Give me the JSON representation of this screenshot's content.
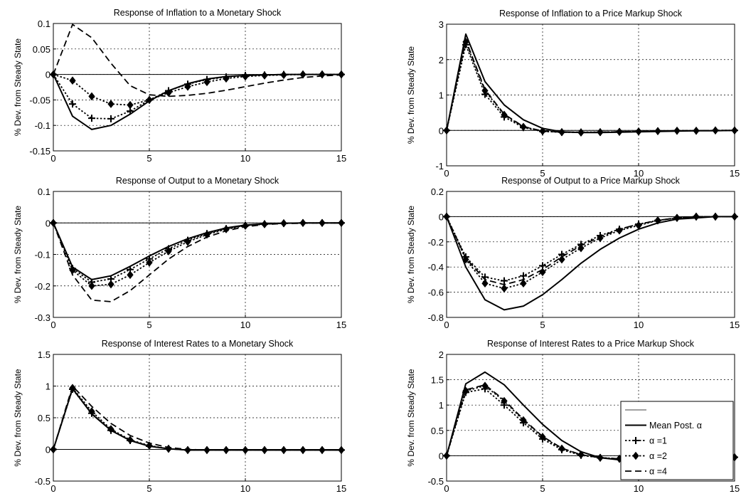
{
  "chart_data": [
    {
      "type": "line",
      "title": "Response of Inflation to a Monetary Shock",
      "xlabel": "",
      "ylabel": "% Dev. from Steady State",
      "xlim": [
        0,
        15
      ],
      "ylim": [
        -0.15,
        0.1
      ],
      "xticks": [
        0,
        5,
        10,
        15
      ],
      "yticks": [
        -0.15,
        -0.1,
        -0.05,
        0,
        0.05,
        0.1
      ],
      "ytick_labels": [
        "-0.15",
        "-0.1",
        "-0.05",
        "0",
        "0.05",
        "0.1"
      ],
      "grid": true,
      "x": [
        0,
        1,
        2,
        3,
        4,
        5,
        6,
        7,
        8,
        9,
        10,
        11,
        12,
        13,
        14,
        15
      ],
      "series": [
        {
          "style": "mean",
          "values": [
            0,
            -0.082,
            -0.108,
            -0.1,
            -0.078,
            -0.052,
            -0.032,
            -0.018,
            -0.009,
            -0.004,
            -0.002,
            -0.001,
            0,
            0,
            0,
            0
          ]
        },
        {
          "style": "a1",
          "values": [
            0,
            -0.058,
            -0.086,
            -0.087,
            -0.072,
            -0.05,
            -0.032,
            -0.019,
            -0.01,
            -0.005,
            -0.002,
            -0.001,
            0,
            0,
            0,
            0
          ]
        },
        {
          "style": "a2",
          "values": [
            0,
            -0.012,
            -0.043,
            -0.058,
            -0.06,
            -0.05,
            -0.036,
            -0.024,
            -0.015,
            -0.008,
            -0.004,
            -0.002,
            -0.001,
            0,
            0,
            0
          ]
        },
        {
          "style": "a4",
          "values": [
            0,
            0.098,
            0.072,
            0.022,
            -0.022,
            -0.04,
            -0.043,
            -0.041,
            -0.037,
            -0.031,
            -0.024,
            -0.017,
            -0.011,
            -0.006,
            -0.003,
            -0.001
          ]
        }
      ]
    },
    {
      "type": "line",
      "title": "Response of Inflation to a Price Markup Shock",
      "xlabel": "",
      "ylabel": "% Dev. from Steady State",
      "xlim": [
        0,
        15
      ],
      "ylim": [
        -1,
        3
      ],
      "xticks": [
        0,
        5,
        10,
        15
      ],
      "yticks": [
        -1,
        0,
        1,
        2,
        3
      ],
      "ytick_labels": [
        "-1",
        "0",
        "1",
        "2",
        "3"
      ],
      "grid": true,
      "x": [
        0,
        1,
        2,
        3,
        4,
        5,
        6,
        7,
        8,
        9,
        10,
        11,
        12,
        13,
        14,
        15
      ],
      "series": [
        {
          "style": "mean",
          "values": [
            0,
            2.72,
            1.38,
            0.72,
            0.3,
            0.06,
            -0.04,
            -0.06,
            -0.06,
            -0.05,
            -0.04,
            -0.03,
            -0.02,
            -0.01,
            -0.01,
            0
          ]
        },
        {
          "style": "a1",
          "values": [
            0,
            2.42,
            1.02,
            0.38,
            0.08,
            -0.03,
            -0.05,
            -0.05,
            -0.05,
            -0.04,
            -0.03,
            -0.02,
            -0.01,
            -0.01,
            0,
            0
          ]
        },
        {
          "style": "a2",
          "values": [
            0,
            2.5,
            1.12,
            0.44,
            0.1,
            -0.02,
            -0.05,
            -0.06,
            -0.05,
            -0.04,
            -0.03,
            -0.02,
            -0.01,
            -0.01,
            0,
            0
          ]
        },
        {
          "style": "a4",
          "values": [
            0,
            2.55,
            1.15,
            0.46,
            0.11,
            -0.02,
            -0.05,
            -0.06,
            -0.05,
            -0.04,
            -0.03,
            -0.02,
            -0.01,
            -0.01,
            0,
            0
          ]
        }
      ]
    },
    {
      "type": "line",
      "title": "Response of Output to a Monetary Shock",
      "xlabel": "",
      "ylabel": "% Dev. from Steady State",
      "xlim": [
        0,
        15
      ],
      "ylim": [
        -0.3,
        0.1
      ],
      "xticks": [
        0,
        5,
        10,
        15
      ],
      "yticks": [
        -0.3,
        -0.2,
        -0.1,
        0,
        0.1
      ],
      "ytick_labels": [
        "-0.3",
        "-0.2",
        "-0.1",
        "0",
        "0.1"
      ],
      "grid": true,
      "x": [
        0,
        1,
        2,
        3,
        4,
        5,
        6,
        7,
        8,
        9,
        10,
        11,
        12,
        13,
        14,
        15
      ],
      "series": [
        {
          "style": "mean",
          "values": [
            0,
            -0.14,
            -0.18,
            -0.168,
            -0.138,
            -0.105,
            -0.075,
            -0.05,
            -0.031,
            -0.016,
            -0.007,
            -0.003,
            -0.001,
            0,
            0,
            0
          ]
        },
        {
          "style": "a1",
          "values": [
            0,
            -0.145,
            -0.188,
            -0.178,
            -0.148,
            -0.114,
            -0.082,
            -0.055,
            -0.034,
            -0.018,
            -0.008,
            -0.003,
            -0.001,
            0,
            0,
            0
          ]
        },
        {
          "style": "a2",
          "values": [
            0,
            -0.15,
            -0.2,
            -0.195,
            -0.165,
            -0.126,
            -0.09,
            -0.06,
            -0.037,
            -0.02,
            -0.009,
            -0.004,
            -0.001,
            0,
            0,
            0
          ]
        },
        {
          "style": "a4",
          "values": [
            0,
            -0.165,
            -0.245,
            -0.25,
            -0.215,
            -0.165,
            -0.115,
            -0.075,
            -0.045,
            -0.025,
            -0.012,
            -0.005,
            -0.002,
            -0.001,
            0,
            0
          ]
        }
      ]
    },
    {
      "type": "line",
      "title": "Response of Output to a Price Markup Shock",
      "xlabel": "",
      "ylabel": "% Dev. from Steady State",
      "xlim": [
        0,
        15
      ],
      "ylim": [
        -0.8,
        0.2
      ],
      "xticks": [
        0,
        5,
        10,
        15
      ],
      "yticks": [
        -0.8,
        -0.6,
        -0.4,
        -0.2,
        0,
        0.2
      ],
      "ytick_labels": [
        "-0.8",
        "-0.6",
        "-0.4",
        "-0.2",
        "0",
        "0.2"
      ],
      "grid": true,
      "x": [
        0,
        1,
        2,
        3,
        4,
        5,
        6,
        7,
        8,
        9,
        10,
        11,
        12,
        13,
        14,
        15
      ],
      "series": [
        {
          "style": "mean",
          "values": [
            0,
            -0.4,
            -0.66,
            -0.74,
            -0.71,
            -0.62,
            -0.5,
            -0.37,
            -0.26,
            -0.17,
            -0.1,
            -0.05,
            -0.02,
            -0.01,
            0,
            0
          ]
        },
        {
          "style": "a1",
          "values": [
            0,
            -0.32,
            -0.48,
            -0.51,
            -0.47,
            -0.39,
            -0.3,
            -0.22,
            -0.15,
            -0.1,
            -0.06,
            -0.03,
            -0.01,
            0,
            0,
            0
          ]
        },
        {
          "style": "a2",
          "values": [
            0,
            -0.34,
            -0.53,
            -0.57,
            -0.53,
            -0.44,
            -0.34,
            -0.25,
            -0.17,
            -0.11,
            -0.07,
            -0.03,
            -0.01,
            0,
            0,
            0
          ]
        },
        {
          "style": "a4",
          "values": [
            0,
            -0.33,
            -0.5,
            -0.54,
            -0.5,
            -0.42,
            -0.32,
            -0.23,
            -0.16,
            -0.1,
            -0.06,
            -0.03,
            -0.01,
            0,
            0,
            0
          ]
        }
      ]
    },
    {
      "type": "line",
      "title": "Response of Interest Rates to a Monetary Shock",
      "xlabel": "",
      "ylabel": "% Dev. from Steady State",
      "xlim": [
        0,
        15
      ],
      "ylim": [
        -0.5,
        1.5
      ],
      "xticks": [
        0,
        5,
        10,
        15
      ],
      "yticks": [
        -0.5,
        0,
        0.5,
        1,
        1.5
      ],
      "ytick_labels": [
        "-0.5",
        "0",
        "0.5",
        "1",
        "1.5"
      ],
      "grid": true,
      "x": [
        0,
        1,
        2,
        3,
        4,
        5,
        6,
        7,
        8,
        9,
        10,
        11,
        12,
        13,
        14,
        15
      ],
      "series": [
        {
          "style": "mean",
          "values": [
            0,
            0.96,
            0.56,
            0.3,
            0.14,
            0.05,
            0.01,
            -0.01,
            -0.01,
            -0.01,
            -0.01,
            -0.01,
            -0.01,
            -0.01,
            -0.01,
            -0.01
          ]
        },
        {
          "style": "a1",
          "values": [
            0,
            0.95,
            0.57,
            0.3,
            0.14,
            0.05,
            0.01,
            -0.01,
            -0.01,
            -0.01,
            -0.01,
            -0.01,
            -0.01,
            -0.01,
            -0.01,
            -0.01
          ]
        },
        {
          "style": "a2",
          "values": [
            0,
            0.97,
            0.6,
            0.32,
            0.15,
            0.06,
            0.01,
            -0.01,
            -0.01,
            -0.01,
            -0.01,
            -0.01,
            -0.01,
            -0.01,
            -0.01,
            -0.01
          ]
        },
        {
          "style": "a4",
          "values": [
            0,
            1.0,
            0.68,
            0.41,
            0.22,
            0.1,
            0.03,
            0.0,
            -0.01,
            -0.01,
            -0.01,
            -0.01,
            -0.01,
            -0.01,
            -0.01,
            -0.01
          ]
        }
      ]
    },
    {
      "type": "line",
      "title": "Response of Interest Rates to a Price Markup Shock",
      "xlabel": "",
      "ylabel": "% Dev. from Steady State",
      "xlim": [
        0,
        15
      ],
      "ylim": [
        -0.5,
        2
      ],
      "xticks": [
        0,
        5,
        10,
        15
      ],
      "yticks": [
        -0.5,
        0,
        0.5,
        1,
        1.5,
        2
      ],
      "ytick_labels": [
        "-0.5",
        "0",
        "0.5",
        "1",
        "1.5",
        "2"
      ],
      "grid": true,
      "legend_position": "lower-right",
      "x": [
        0,
        1,
        2,
        3,
        4,
        5,
        6,
        7,
        8,
        9,
        10,
        11,
        12,
        13,
        14,
        15
      ],
      "series": [
        {
          "style": "mean",
          "values": [
            0,
            1.42,
            1.65,
            1.4,
            1.0,
            0.62,
            0.3,
            0.08,
            -0.04,
            -0.08,
            -0.08,
            -0.07,
            -0.06,
            -0.05,
            -0.04,
            -0.03
          ]
        },
        {
          "style": "a1",
          "values": [
            0,
            1.25,
            1.32,
            1.0,
            0.65,
            0.33,
            0.12,
            0.01,
            -0.04,
            -0.06,
            -0.06,
            -0.05,
            -0.05,
            -0.04,
            -0.03,
            -0.03
          ]
        },
        {
          "style": "a2",
          "values": [
            0,
            1.28,
            1.38,
            1.08,
            0.7,
            0.37,
            0.14,
            0.02,
            -0.04,
            -0.06,
            -0.06,
            -0.05,
            -0.05,
            -0.04,
            -0.03,
            -0.03
          ]
        },
        {
          "style": "a4",
          "values": [
            0,
            1.3,
            1.4,
            1.1,
            0.72,
            0.38,
            0.15,
            0.02,
            -0.04,
            -0.06,
            -0.06,
            -0.05,
            -0.05,
            -0.04,
            -0.03,
            -0.03
          ]
        }
      ]
    }
  ],
  "legend": {
    "entries": [
      {
        "style": "blank",
        "label": ""
      },
      {
        "style": "mean",
        "label": "Mean Post. α"
      },
      {
        "style": "a1",
        "label": "α =1"
      },
      {
        "style": "a2",
        "label": "α =2"
      },
      {
        "style": "a4",
        "label": "α =4"
      }
    ]
  },
  "colors": {
    "ink": "#000000",
    "grid": "#000000",
    "background": "#ffffff"
  }
}
